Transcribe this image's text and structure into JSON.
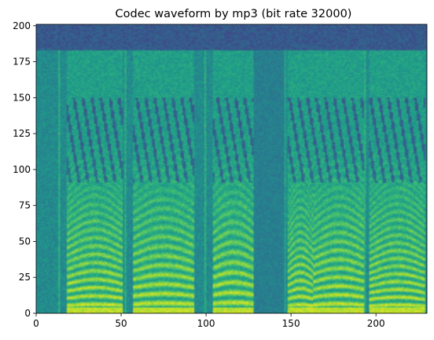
{
  "chart_data": {
    "type": "heatmap",
    "title": "Codec waveform by mp3 (bit rate 32000)",
    "xlabel": "",
    "ylabel": "",
    "xlim": [
      0,
      230
    ],
    "ylim": [
      0,
      201
    ],
    "x_ticks": [
      0,
      50,
      100,
      150,
      200
    ],
    "y_ticks": [
      0,
      25,
      50,
      75,
      100,
      125,
      150,
      175,
      200
    ],
    "colormap": "viridis",
    "grid": false,
    "legend": "none",
    "content": "spectrogram: time frames on x-axis, frequency bins on y-axis; bright yellow harmonics at low bins during voiced segments, dark low-energy column near x=130-145, band-limited above bin ~183"
  }
}
